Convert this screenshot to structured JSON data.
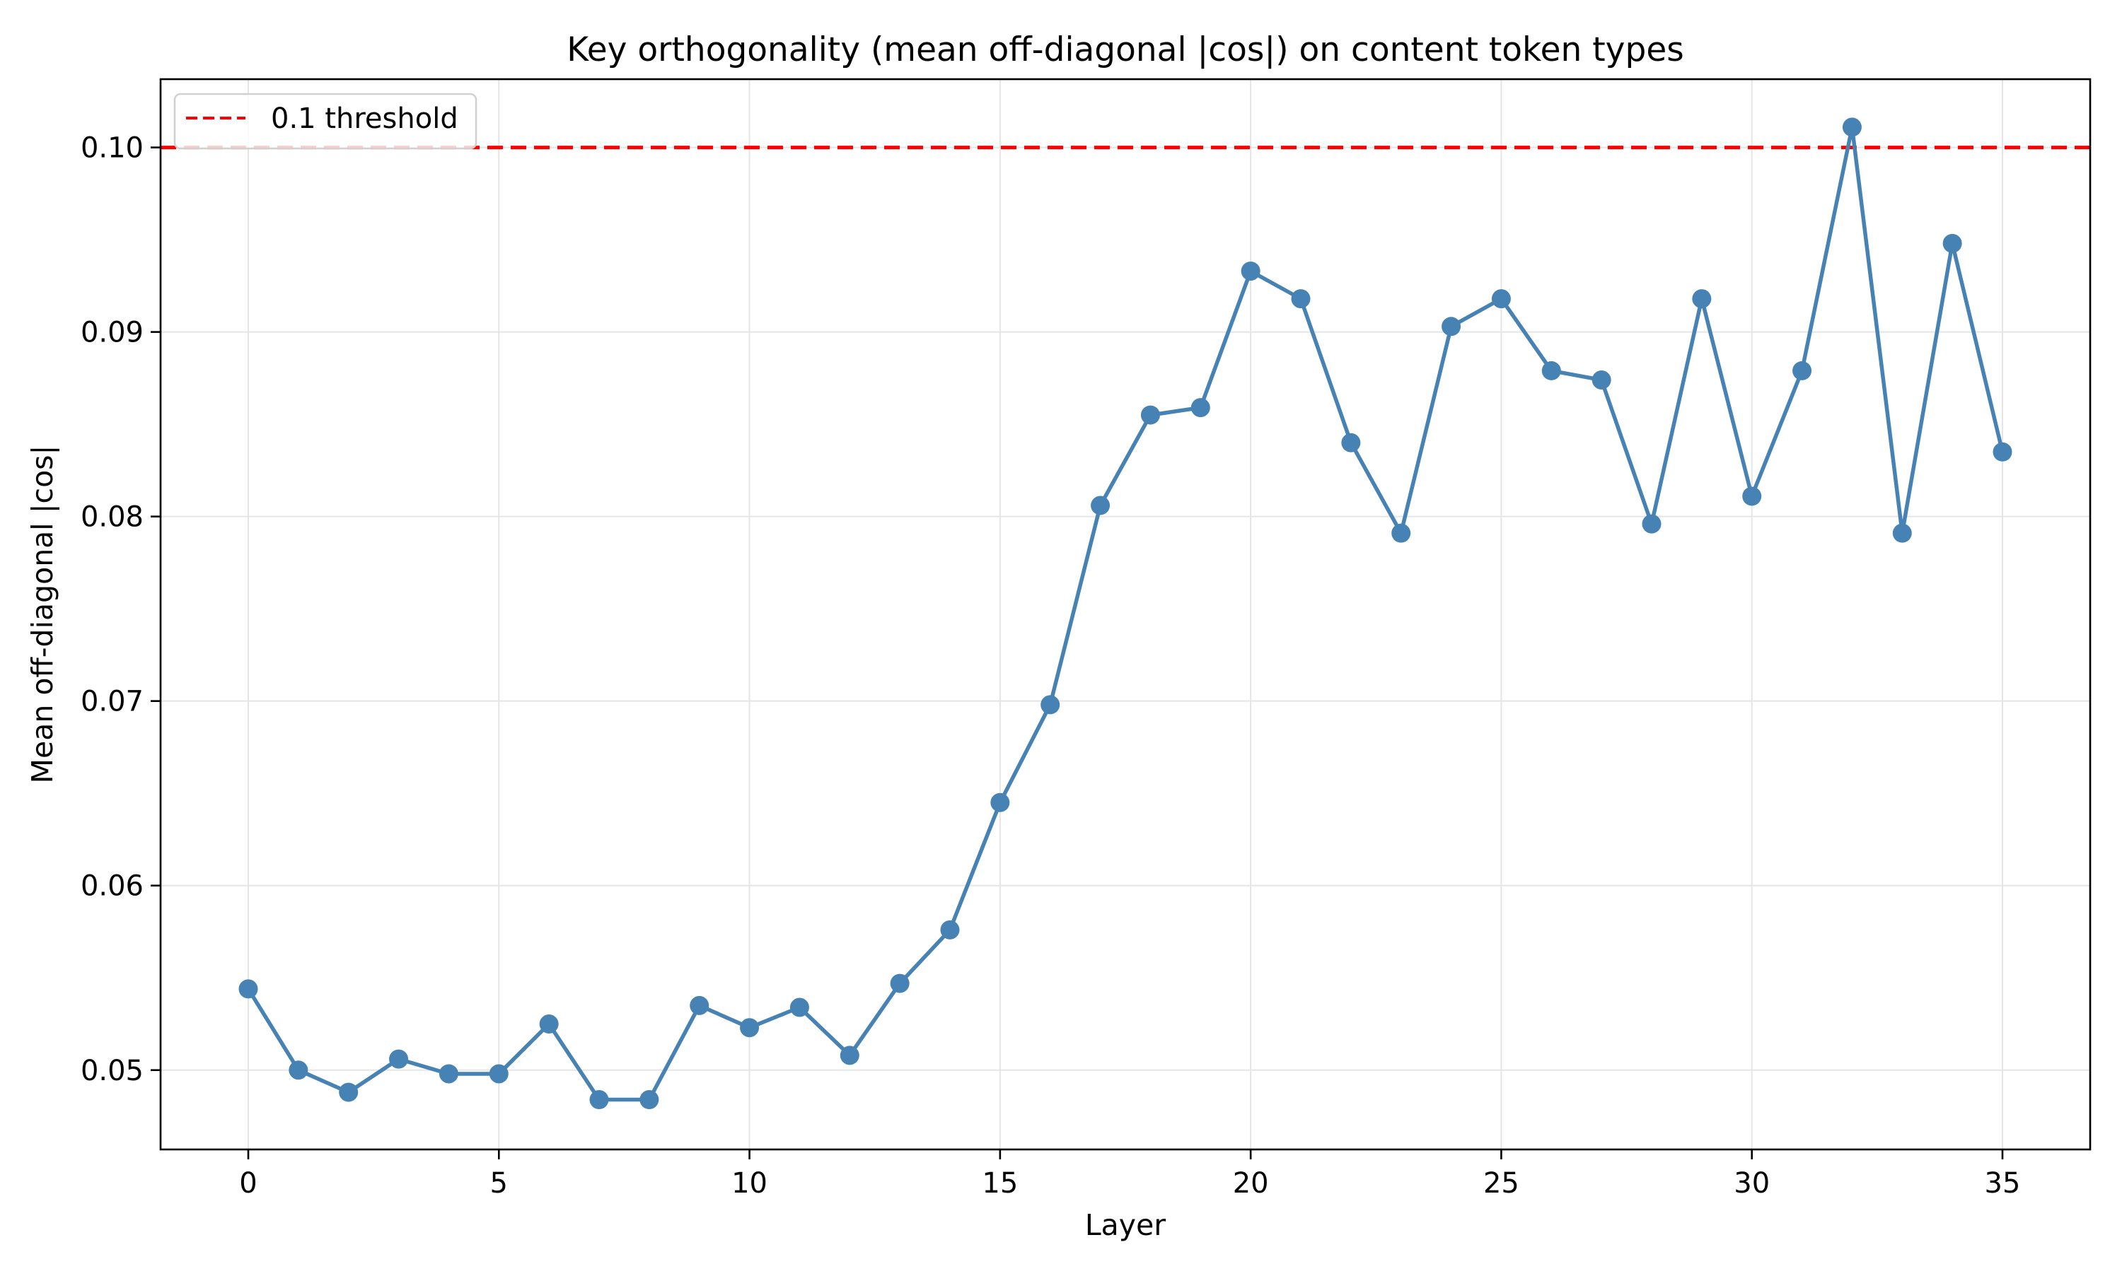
{
  "chart_data": {
    "type": "line",
    "title": "Key orthogonality (mean off-diagonal |cos|) on content token types",
    "xlabel": "Layer",
    "ylabel": "Mean off-diagonal |cos|",
    "xlim": [
      -1.75,
      36.75
    ],
    "ylim": [
      0.0457,
      0.1037
    ],
    "xticks": [
      0,
      5,
      10,
      15,
      20,
      25,
      30,
      35
    ],
    "xtick_labels": [
      "0",
      "5",
      "10",
      "15",
      "20",
      "25",
      "30",
      "35"
    ],
    "yticks": [
      0.05,
      0.06,
      0.07,
      0.08,
      0.09,
      0.1
    ],
    "ytick_labels": [
      "0.05",
      "0.06",
      "0.07",
      "0.08",
      "0.09",
      "0.10"
    ],
    "grid": true,
    "legend_position": "upper left",
    "x": [
      0,
      1,
      2,
      3,
      4,
      5,
      6,
      7,
      8,
      9,
      10,
      11,
      12,
      13,
      14,
      15,
      16,
      17,
      18,
      19,
      20,
      21,
      22,
      23,
      24,
      25,
      26,
      27,
      28,
      29,
      30,
      31,
      32,
      33,
      34,
      35
    ],
    "series": [
      {
        "name": "mean off-diagonal |cos|",
        "color": "#4682b4",
        "marker": "circle",
        "values": [
          0.0544,
          0.05,
          0.0488,
          0.0506,
          0.0498,
          0.0498,
          0.0525,
          0.0484,
          0.0484,
          0.0535,
          0.0523,
          0.0534,
          0.0508,
          0.0547,
          0.0576,
          0.0645,
          0.0698,
          0.0806,
          0.0855,
          0.0859,
          0.0933,
          0.0918,
          0.084,
          0.0791,
          0.0903,
          0.0918,
          0.0879,
          0.0874,
          0.0796,
          0.0918,
          0.0811,
          0.0879,
          0.1011,
          0.0791,
          0.0948,
          0.0835
        ]
      }
    ],
    "reference_lines": [
      {
        "type": "horizontal",
        "y": 0.1,
        "label": "0.1 threshold",
        "color": "#ff0000",
        "style": "dashed"
      }
    ],
    "legend": [
      {
        "label": "0.1 threshold",
        "color": "#ff0000",
        "style": "dashed"
      }
    ]
  },
  "colors": {
    "series": "#4682b4",
    "threshold": "#ff0000",
    "grid": "#e5e5e5",
    "axis": "#000000",
    "legend_border": "#d0d0d0"
  }
}
